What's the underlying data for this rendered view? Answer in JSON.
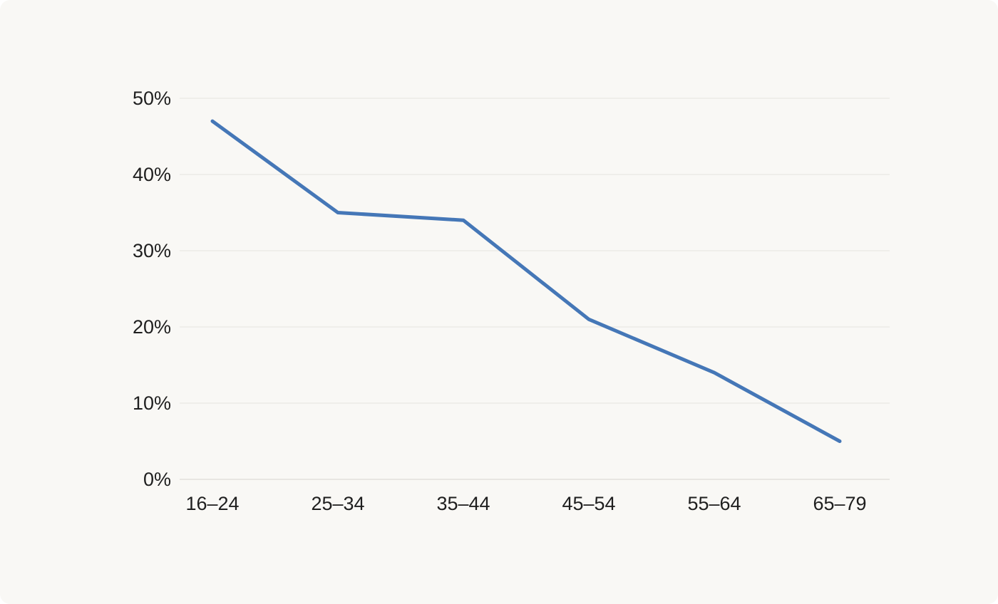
{
  "chart_data": {
    "type": "line",
    "categories": [
      "16–24",
      "25–34",
      "35–44",
      "45–54",
      "55–64",
      "65–79"
    ],
    "values": [
      47,
      35,
      34,
      21,
      14,
      5
    ],
    "y_tick_labels": [
      "0%",
      "10%",
      "20%",
      "30%",
      "40%",
      "50%"
    ],
    "ylim": [
      0,
      50
    ],
    "ytick_step": 10,
    "grid": true,
    "legend": "none",
    "colors": {
      "line": "#4577b7",
      "grid": "#efeeea",
      "axis": "#e8e6e2",
      "text": "#1f1f1f",
      "card_background": "#f9f8f5",
      "page_background": "#ffffff"
    }
  }
}
